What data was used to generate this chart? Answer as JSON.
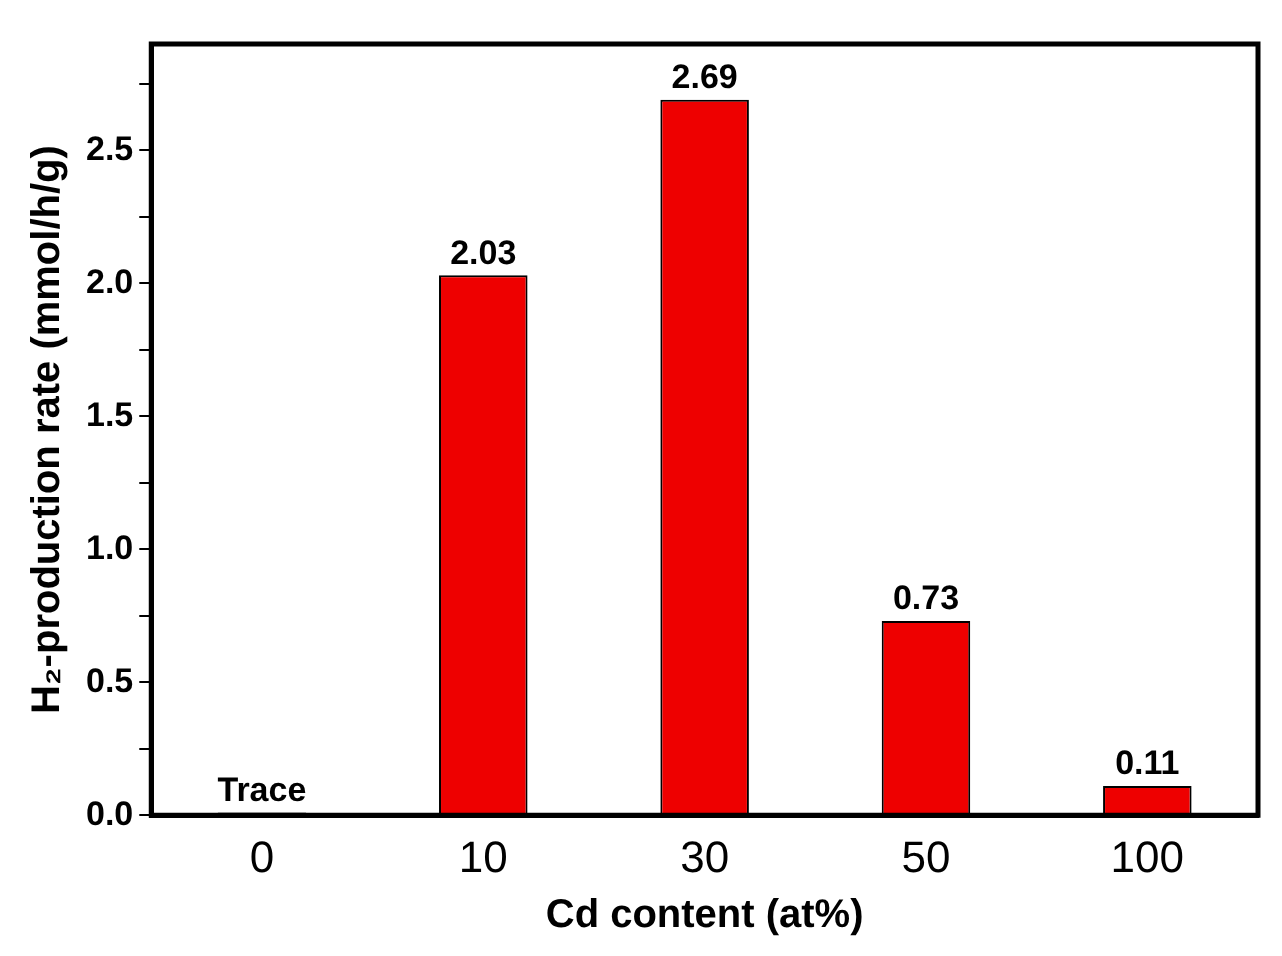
{
  "chart_data": {
    "type": "bar",
    "xlabel": "Cd content (at%)",
    "ylabel": "H₂-production rate (mmol/h/g)",
    "categories": [
      "0",
      "10",
      "30",
      "50",
      "100"
    ],
    "values": [
      0.01,
      2.03,
      2.69,
      0.73,
      0.11
    ],
    "value_labels": [
      "Trace",
      "2.03",
      "2.69",
      "0.73",
      "0.11"
    ],
    "color": "#ee0000",
    "ylim": [
      0,
      2.9
    ],
    "yticks": [
      {
        "value": 0,
        "label": "0.0"
      },
      {
        "value": 0.25,
        "label": null
      },
      {
        "value": 0.5,
        "label": "0.5"
      },
      {
        "value": 0.75,
        "label": null
      },
      {
        "value": 1,
        "label": "1.0"
      },
      {
        "value": 1.25,
        "label": null
      },
      {
        "value": 1.5,
        "label": "1.5"
      },
      {
        "value": 1.75,
        "label": null
      },
      {
        "value": 2,
        "label": "2.0"
      },
      {
        "value": 2.25,
        "label": null
      },
      {
        "value": 2.5,
        "label": "2.5"
      },
      {
        "value": 2.75,
        "label": null
      }
    ],
    "grid": false,
    "legend": false
  }
}
